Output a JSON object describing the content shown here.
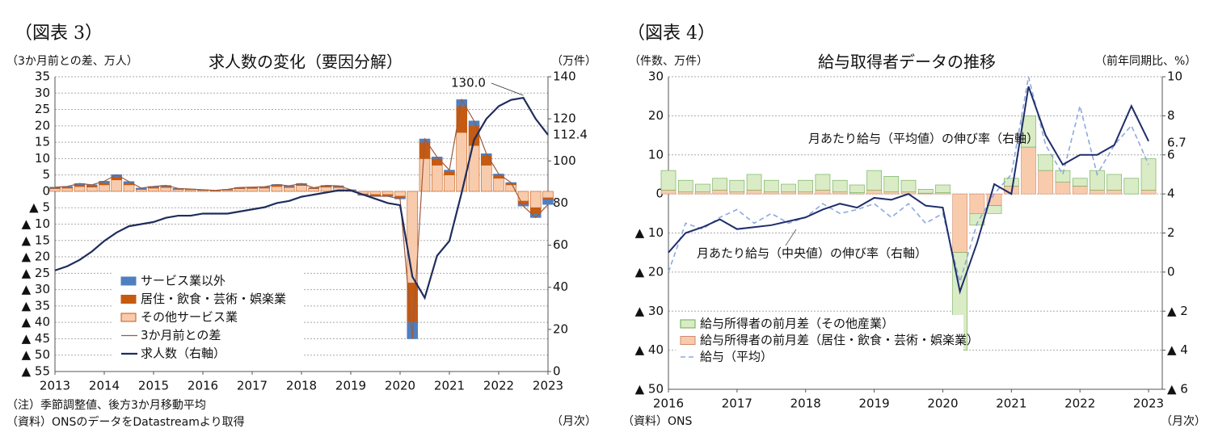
{
  "chart_data": [
    {
      "type": "combo",
      "label": "（図表 3）",
      "title": "求人数の変化（要因分解）",
      "y_label": "（3か月前との差、万人）",
      "y2_label": "（万件）",
      "x_label": "（月次）",
      "notes": [
        "（注）季節調整値、後方3か月移動平均",
        "（資料）ONSのデータをDatastreamより取得"
      ],
      "xlim": [
        2013,
        2023
      ],
      "xticks": [
        2013,
        2014,
        2015,
        2016,
        2017,
        2018,
        2019,
        2020,
        2021,
        2022,
        2023
      ],
      "ylim": [
        -55,
        35
      ],
      "yticks": [
        35,
        30,
        25,
        20,
        15,
        10,
        5,
        0,
        {
          "value": -5,
          "label": "▲ 5"
        },
        {
          "value": -10,
          "label": "▲ 10"
        },
        {
          "value": -15,
          "label": "▲ 15"
        },
        {
          "value": -20,
          "label": "▲ 20"
        },
        {
          "value": -25,
          "label": "▲ 25"
        },
        {
          "value": -30,
          "label": "▲ 30"
        },
        {
          "value": -35,
          "label": "▲ 35"
        },
        {
          "value": -40,
          "label": "▲ 40"
        },
        {
          "value": -45,
          "label": "▲ 45"
        },
        {
          "value": -50,
          "label": "▲ 50"
        },
        {
          "value": -55,
          "label": "▲ 55"
        }
      ],
      "y2lim": [
        0,
        140
      ],
      "y2ticks": [
        0,
        20,
        40,
        60,
        80,
        100,
        120,
        140
      ],
      "grid": true,
      "x": [
        2013,
        2013.25,
        2013.5,
        2013.75,
        2014,
        2014.25,
        2014.5,
        2014.75,
        2015,
        2015.25,
        2015.5,
        2015.75,
        2016,
        2016.25,
        2016.5,
        2016.75,
        2017,
        2017.25,
        2017.5,
        2017.75,
        2018,
        2018.25,
        2018.5,
        2018.75,
        2019,
        2019.25,
        2019.5,
        2019.75,
        2020,
        2020.25,
        2020.5,
        2020.75,
        2021,
        2021.25,
        2021.5,
        2021.75,
        2022,
        2022.25,
        2022.5,
        2022.75,
        2023
      ],
      "series": [
        {
          "name": "サービス業以外",
          "type": "bar",
          "color": "#4f7fc0",
          "edge": "#4f7fc0",
          "values": [
            0.3,
            0.2,
            0.4,
            0.3,
            0.5,
            0.8,
            0.5,
            0.2,
            0.2,
            0.3,
            0.1,
            0.1,
            0.1,
            0,
            0.1,
            0.2,
            0.2,
            0.2,
            0.3,
            0.2,
            0.3,
            0.1,
            0.2,
            0.2,
            0.1,
            -0.2,
            -0.2,
            -0.2,
            -0.3,
            -5,
            1,
            0.5,
            0.5,
            2,
            1.5,
            0.5,
            0.3,
            0.2,
            -0.5,
            -1,
            -1.5
          ]
        },
        {
          "name": "居住・飲食・芸術・娯楽業",
          "type": "bar",
          "color": "#c55a11",
          "edge": "#c55a11",
          "values": [
            0.2,
            0.3,
            0.5,
            0.4,
            0.6,
            0.8,
            0.5,
            0.2,
            0.3,
            0.3,
            0.2,
            0.1,
            0.1,
            0.1,
            0.1,
            0.2,
            0.2,
            0.2,
            0.3,
            0.3,
            0.3,
            0.2,
            0.3,
            0.3,
            0.1,
            -0.2,
            -0.3,
            -0.3,
            -0.5,
            -12,
            5,
            2,
            1,
            8,
            6,
            3,
            1,
            0.5,
            -1,
            -2,
            -0.5
          ]
        },
        {
          "name": "その他サービス業",
          "type": "bar",
          "color": "#f8cbad",
          "edge": "#c55a11",
          "values": [
            0.8,
            1.0,
            1.5,
            1.3,
            2.0,
            3.5,
            2.0,
            0.6,
            1.0,
            1.2,
            0.6,
            0.5,
            0.3,
            0.2,
            0.4,
            0.8,
            0.9,
            1.0,
            1.5,
            1.2,
            1.8,
            0.8,
            1.3,
            1.2,
            0.3,
            -0.8,
            -1.0,
            -1.0,
            -1.5,
            -28,
            10,
            8,
            5,
            18,
            14,
            8,
            4,
            2,
            -3,
            -5,
            -2
          ]
        },
        {
          "name": "3か月前との差",
          "type": "line",
          "color": "#9e5a3c",
          "width": 1.2,
          "values": [
            1.3,
            1.5,
            2.4,
            2.0,
            3.1,
            5.1,
            3.0,
            1.0,
            1.5,
            1.8,
            0.9,
            0.7,
            0.5,
            0.3,
            0.6,
            1.2,
            1.3,
            1.4,
            2.1,
            1.7,
            2.4,
            1.1,
            1.8,
            1.7,
            0.5,
            -1.2,
            -1.5,
            -1.5,
            -2.3,
            -45,
            16,
            10.5,
            6.5,
            28,
            21.5,
            11.5,
            5.3,
            2.7,
            -4.5,
            -8,
            -4
          ]
        },
        {
          "name": "求人数（右軸）",
          "type": "line",
          "axis": "y2",
          "color": "#1f2d5c",
          "width": 2.2,
          "values": [
            48,
            50,
            53,
            57,
            62,
            66,
            69,
            70,
            71,
            73,
            74,
            74,
            75,
            75,
            75,
            76,
            77,
            78,
            80,
            81,
            83,
            84,
            85,
            86,
            86,
            84,
            82,
            80,
            79,
            45,
            35,
            55,
            62,
            85,
            110,
            120,
            126,
            129,
            130,
            120,
            112.4
          ],
          "value_labels": [
            null,
            null,
            null,
            null,
            null,
            null,
            null,
            null,
            null,
            null,
            null,
            null,
            null,
            null,
            null,
            null,
            null,
            null,
            null,
            null,
            null,
            null,
            null,
            null,
            null,
            null,
            null,
            null,
            null,
            null,
            null,
            null,
            null,
            null,
            null,
            null,
            null,
            null,
            "130.0",
            null,
            "112.4"
          ]
        }
      ]
    },
    {
      "type": "combo",
      "label": "（図表 4）",
      "title": "給与取得者データの推移",
      "y_label": "（件数、万件）",
      "y2_label": "（前年同期比、%）",
      "x_label": "（月次）",
      "notes": [
        "（資料）ONS"
      ],
      "annotations": [
        "月あたり給与（平均値）の伸び率（右軸）"
      ],
      "xlim": [
        2016,
        2023.2
      ],
      "xticks": [
        2016,
        2017,
        2018,
        2019,
        2020,
        2021,
        2022,
        2023
      ],
      "ylim": [
        -50,
        30
      ],
      "yticks": [
        30,
        20,
        10,
        0,
        {
          "value": -10,
          "label": "▲ 10"
        },
        {
          "value": -20,
          "label": "▲ 20"
        },
        {
          "value": -30,
          "label": "▲ 30"
        },
        {
          "value": -40,
          "label": "▲ 40"
        },
        {
          "value": -50,
          "label": "▲ 50"
        }
      ],
      "y2lim": [
        -6,
        10
      ],
      "y2ticks": [
        10,
        8,
        6,
        4,
        2,
        0,
        {
          "value": -2,
          "label": "▲ 2"
        },
        {
          "value": -4,
          "label": "▲ 4"
        },
        {
          "value": -6,
          "label": "▲ 6"
        }
      ],
      "grid": true,
      "x": [
        2016,
        2016.25,
        2016.5,
        2016.75,
        2017,
        2017.25,
        2017.5,
        2017.75,
        2018,
        2018.25,
        2018.5,
        2018.75,
        2019,
        2019.25,
        2019.5,
        2019.75,
        2020,
        2020.25,
        2020.5,
        2020.75,
        2021,
        2021.25,
        2021.5,
        2021.75,
        2022,
        2022.25,
        2022.5,
        2022.75,
        2023
      ],
      "series": [
        {
          "name": "給与所得者の前月差（その他産業）",
          "type": "bar",
          "color": "#d9ecc5",
          "edge": "#6aa84f",
          "values": [
            5,
            3,
            2,
            3,
            3,
            4,
            3,
            2,
            3,
            4,
            3,
            2,
            5,
            4,
            3,
            1,
            2,
            -25,
            -3,
            -2,
            2,
            8,
            4,
            3,
            2,
            5,
            4,
            4,
            8
          ]
        },
        {
          "name": "給与所得者の前月差（居住・飲食・芸術・娯楽業）",
          "type": "bar",
          "color": "#f8cbad",
          "edge": "#d08a6a",
          "values": [
            1,
            0.5,
            0.5,
            1,
            0.5,
            1,
            0.5,
            0.5,
            0.5,
            1,
            0.5,
            0.3,
            1,
            0.5,
            0.5,
            0.2,
            0.3,
            -15,
            -5,
            -3,
            2,
            12,
            6,
            3,
            2,
            1,
            1,
            0,
            1
          ]
        },
        {
          "name": "給与（平均）",
          "type": "line",
          "axis": "y2",
          "color": "#8ea9db",
          "width": 1.6,
          "dashed": true,
          "values": [
            0.0,
            2.5,
            2.2,
            2.8,
            3.2,
            2.5,
            3.0,
            2.5,
            2.8,
            3.5,
            3.0,
            3.2,
            3.5,
            2.8,
            3.5,
            2.5,
            3.0,
            -0.5,
            2.5,
            4.0,
            5.0,
            10.0,
            6.5,
            5.0,
            8.5,
            5.0,
            6.5,
            7.5,
            5.5
          ]
        },
        {
          "name": "月あたり給与（中央値）の伸び率（右軸）",
          "type": "line",
          "axis": "y2",
          "color": "#1f2d6c",
          "width": 2,
          "legend": false,
          "values": [
            1.0,
            2.0,
            2.3,
            2.7,
            2.2,
            2.3,
            2.4,
            2.6,
            2.8,
            3.2,
            3.5,
            3.3,
            3.8,
            3.7,
            4.0,
            3.4,
            3.3,
            -1.0,
            1.5,
            4.5,
            4.0,
            9.5,
            7.0,
            5.5,
            6.0,
            6.0,
            6.5,
            8.5,
            6.7
          ],
          "value_labels": [
            null,
            null,
            null,
            null,
            null,
            null,
            null,
            null,
            null,
            null,
            null,
            null,
            null,
            null,
            null,
            null,
            null,
            null,
            null,
            null,
            null,
            null,
            null,
            null,
            null,
            null,
            null,
            null,
            "6.7"
          ]
        }
      ]
    }
  ]
}
